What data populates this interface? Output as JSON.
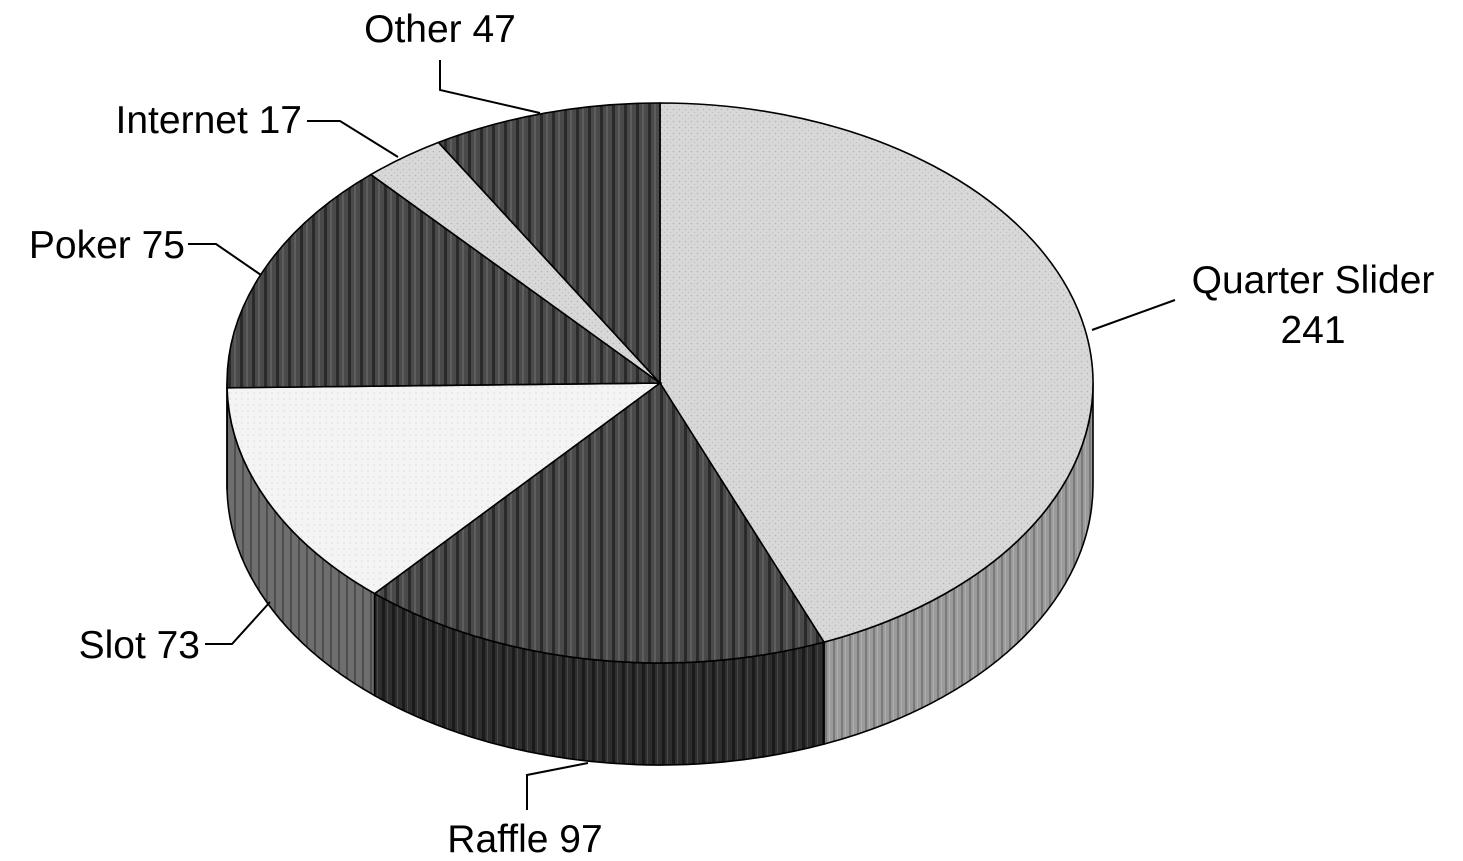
{
  "chart_data": {
    "type": "pie",
    "style": "3d",
    "slices": [
      {
        "label": "Quarter Slider",
        "value": 241,
        "label_lines": [
          "Quarter Slider",
          "241"
        ],
        "color": "#d6d6d6",
        "pattern": "light-stipple"
      },
      {
        "label": "Raffle",
        "value": 97,
        "label_lines": [
          "Raffle 97"
        ],
        "color": "#3a3a3a",
        "pattern": "dark-vertical"
      },
      {
        "label": "Slot",
        "value": 73,
        "label_lines": [
          "Slot 73"
        ],
        "color": "#f3f3f3",
        "pattern": "white-stipple"
      },
      {
        "label": "Poker",
        "value": 75,
        "label_lines": [
          "Poker 75"
        ],
        "color": "#4a4a4a",
        "pattern": "dark-vertical"
      },
      {
        "label": "Internet",
        "value": 17,
        "label_lines": [
          "Internet 17"
        ],
        "color": "#dcdcdc",
        "pattern": "light-stipple"
      },
      {
        "label": "Other",
        "value": 47,
        "label_lines": [
          "Other 47"
        ],
        "color": "#333333",
        "pattern": "dark-vertical"
      }
    ]
  }
}
